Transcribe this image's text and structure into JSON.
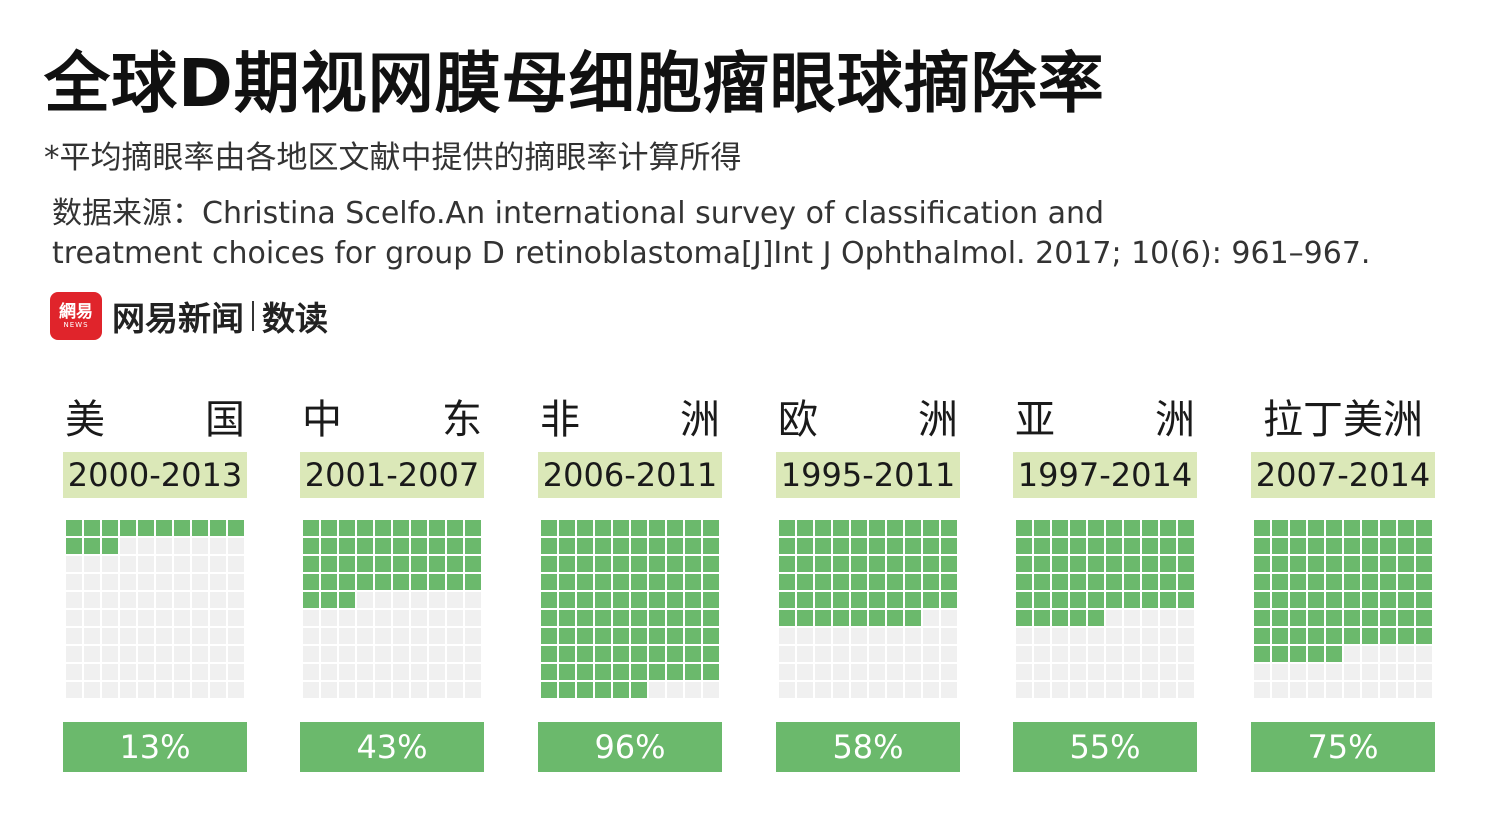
{
  "title": "全球D期视网膜母细胞瘤眼球摘除率",
  "subtitle": "*平均摘眼率由各地区文献中提供的摘眼率计算所得",
  "source": {
    "line1": "数据来源：Christina Scelfo.An international survey of classification and",
    "line2": "treatment choices for group D retinoblastoma[J]Int J Ophthalmol. 2017; 10(6): 961–967."
  },
  "brand": {
    "logo_main": "網易",
    "logo_sub": "NEWS",
    "name": "网易新闻",
    "sub": "数读"
  },
  "colors": {
    "filled": "#6bb96c",
    "empty": "#f0f0f0",
    "years_bg": "#dbe8b8"
  },
  "chart_data": {
    "type": "waffle",
    "grid": "10x10",
    "regions": [
      {
        "region": "美国",
        "region_parts": [
          "美",
          "国"
        ],
        "years": "2000-2013",
        "value": 13,
        "label": "13%"
      },
      {
        "region": "中东",
        "region_parts": [
          "中",
          "东"
        ],
        "years": "2001-2007",
        "value": 43,
        "label": "43%"
      },
      {
        "region": "非洲",
        "region_parts": [
          "非",
          "洲"
        ],
        "years": "2006-2011",
        "value": 96,
        "label": "96%"
      },
      {
        "region": "欧洲",
        "region_parts": [
          "欧",
          "洲"
        ],
        "years": "1995-2011",
        "value": 58,
        "label": "58%"
      },
      {
        "region": "亚洲",
        "region_parts": [
          "亚",
          "洲"
        ],
        "years": "1997-2014",
        "value": 55,
        "label": "55%"
      },
      {
        "region": "拉丁美洲",
        "region_parts": [
          "拉丁美洲"
        ],
        "years": "2007-2014",
        "value": 75,
        "label": "75%"
      }
    ]
  }
}
